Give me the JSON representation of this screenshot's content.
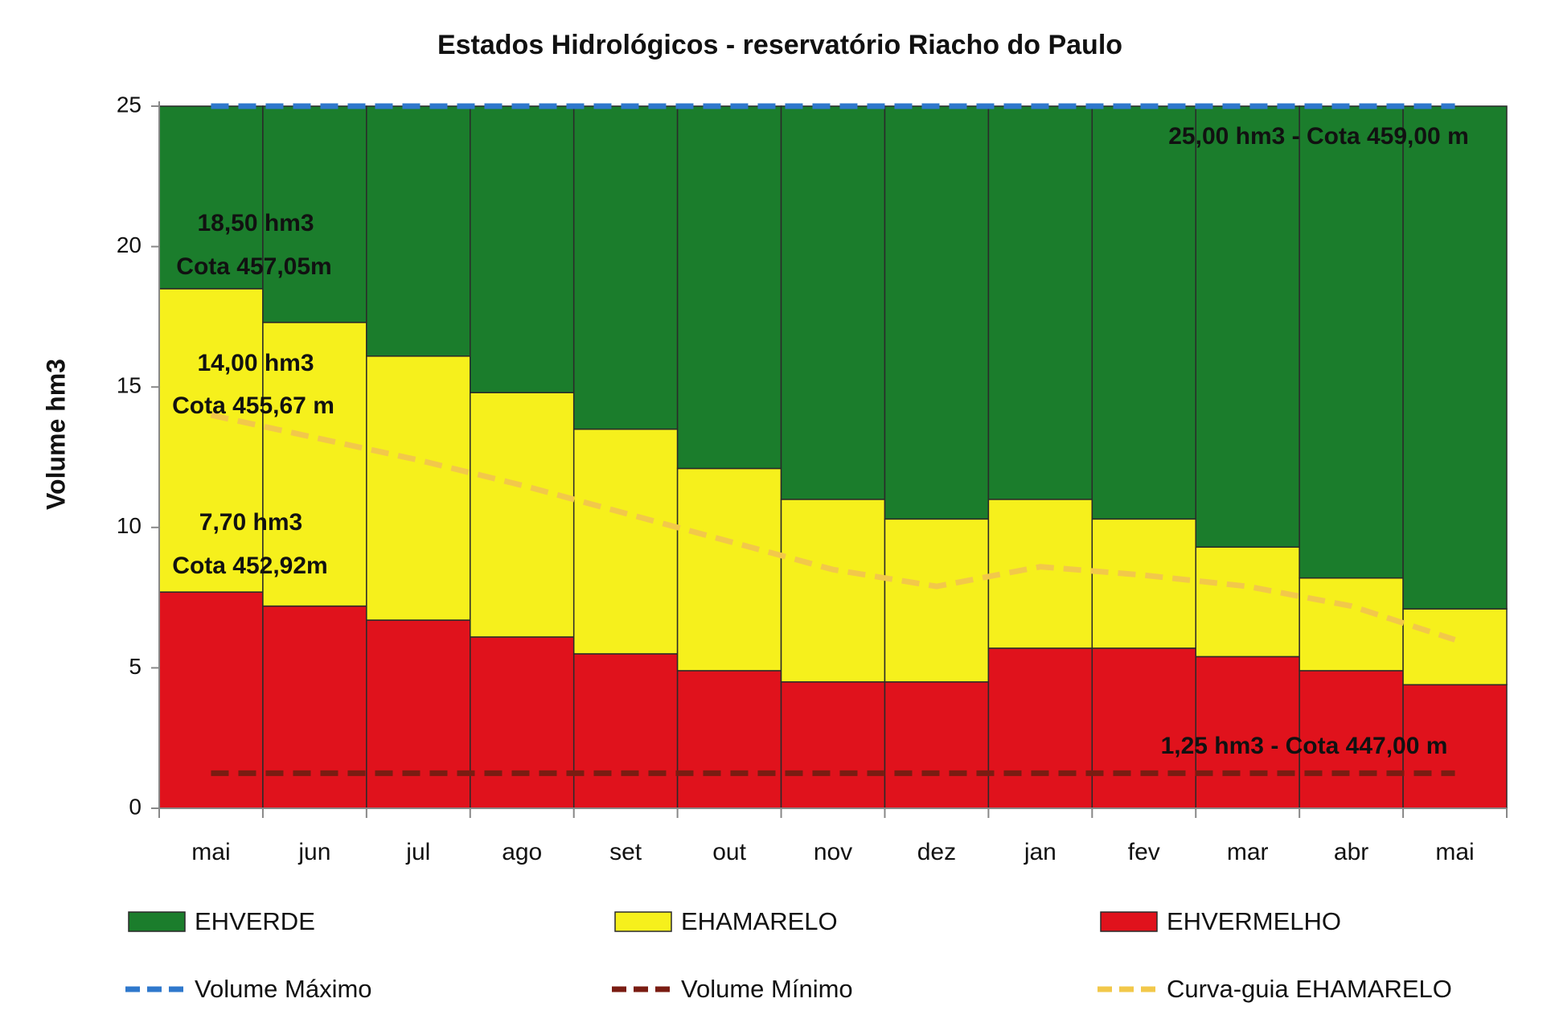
{
  "chart_data": {
    "type": "stacked_bar_line",
    "title": "Estados Hidrológicos - reservatório Riacho do Paulo",
    "y_label": "Volume hm3",
    "categories": [
      "mai",
      "jun",
      "jul",
      "ago",
      "set",
      "out",
      "nov",
      "dez",
      "jan",
      "fev",
      "mar",
      "abr",
      "mai"
    ],
    "ylim": [
      0,
      25
    ],
    "yticks": [
      0,
      5,
      10,
      15,
      20,
      25
    ],
    "series": [
      {
        "name": "EHVERDE",
        "kind": "bar",
        "color": "#1b7d2c",
        "values": [
          6.5,
          7.7,
          8.9,
          10.2,
          11.5,
          12.9,
          14.0,
          14.7,
          14.0,
          14.7,
          15.7,
          16.8,
          17.9
        ]
      },
      {
        "name": "EHAMARELO",
        "kind": "bar",
        "color": "#f6f01c",
        "values": [
          10.8,
          10.1,
          9.4,
          8.7,
          8.0,
          7.2,
          6.5,
          5.8,
          5.3,
          4.6,
          3.9,
          3.3,
          2.7
        ]
      },
      {
        "name": "EHVERMELHO",
        "kind": "bar",
        "color": "#e0121c",
        "values": [
          7.7,
          7.2,
          6.7,
          6.1,
          5.5,
          4.9,
          4.5,
          4.5,
          5.7,
          5.7,
          5.4,
          4.9,
          4.4
        ]
      },
      {
        "name": "Volume Máximo",
        "kind": "line",
        "color": "#2f78cc",
        "values": [
          25,
          25,
          25,
          25,
          25,
          25,
          25,
          25,
          25,
          25,
          25,
          25,
          25
        ]
      },
      {
        "name": "Volume Mínimo",
        "kind": "line",
        "color": "#7a1c12",
        "values": [
          1.25,
          1.25,
          1.25,
          1.25,
          1.25,
          1.25,
          1.25,
          1.25,
          1.25,
          1.25,
          1.25,
          1.25,
          1.25
        ]
      },
      {
        "name": "Curva-guia EHAMARELO",
        "kind": "line",
        "color": "#f2c84a",
        "values": [
          14.0,
          13.2,
          12.4,
          11.5,
          10.5,
          9.5,
          8.5,
          7.9,
          8.6,
          8.3,
          7.9,
          7.2,
          6.0
        ]
      }
    ],
    "annotations": [
      {
        "text": "18,50  hm3",
        "color": "#e4f4ea"
      },
      {
        "text": "Cota 457,05m",
        "color": "#e4f4ea"
      },
      {
        "text": "14,00  hm3",
        "color": "#e8a41e"
      },
      {
        "text": "Cota 455,67 m",
        "color": "#e8a41e"
      },
      {
        "text": "7,70  hm3",
        "color": "#c80e10"
      },
      {
        "text": "Cota 452,92m",
        "color": "#c80e10"
      },
      {
        "text": "25,00 hm3 - Cota 459,00 m",
        "color": "#d8f0e0"
      },
      {
        "text": "1,25 hm3 - Cota 447,00 m",
        "color": "#f4f4f4"
      }
    ]
  }
}
